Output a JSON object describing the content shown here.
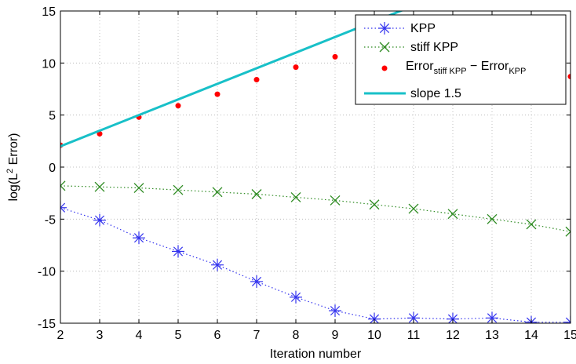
{
  "chart_data": {
    "type": "line",
    "xlabel": "Iteration number",
    "ylabel_main": "log(L",
    "ylabel_sup": "2",
    "ylabel_tail": " Error)",
    "xlim": [
      2,
      15
    ],
    "ylim": [
      -15,
      15
    ],
    "xticks": [
      2,
      3,
      4,
      5,
      6,
      7,
      8,
      9,
      10,
      11,
      12,
      13,
      14,
      15
    ],
    "yticks": [
      -15,
      -10,
      -5,
      0,
      5,
      10,
      15
    ],
    "grid": true,
    "legend_position": "top-right",
    "series": [
      {
        "name": "KPP",
        "marker": "asterisk",
        "line": "dotted",
        "color": "#3333ee",
        "x": [
          2,
          3,
          4,
          5,
          6,
          7,
          8,
          9,
          10,
          11,
          12,
          13,
          14,
          15
        ],
        "y": [
          -3.9,
          -5.1,
          -6.8,
          -8.1,
          -9.4,
          -11.0,
          -12.5,
          -13.8,
          -14.6,
          -14.5,
          -14.6,
          -14.5,
          -14.9,
          -14.9
        ]
      },
      {
        "name": "stiff KPP",
        "marker": "x",
        "line": "dotted",
        "color": "#2e8b22",
        "x": [
          2,
          3,
          4,
          5,
          6,
          7,
          8,
          9,
          10,
          11,
          12,
          13,
          14,
          15
        ],
        "y": [
          -1.8,
          -1.9,
          -2.0,
          -2.2,
          -2.4,
          -2.6,
          -2.9,
          -3.2,
          -3.6,
          -4.0,
          -4.5,
          -5.0,
          -5.5,
          -6.2
        ]
      },
      {
        "name_main": "Error",
        "name_sub1": "stiff KPP",
        "name_mid": " − Error",
        "name_sub2": "KPP",
        "marker": "dot",
        "line": "none",
        "color": "#ff0000",
        "x": [
          2,
          3,
          4,
          5,
          6,
          7,
          8,
          9,
          15
        ],
        "y": [
          2.1,
          3.2,
          4.8,
          5.9,
          7.0,
          8.4,
          9.6,
          10.6,
          8.7
        ]
      },
      {
        "name": "slope 1.5",
        "marker": "none",
        "line": "solid",
        "color": "#18c0c8",
        "x": [
          2,
          10.9
        ],
        "y": [
          2.0,
          15.35
        ]
      }
    ]
  }
}
